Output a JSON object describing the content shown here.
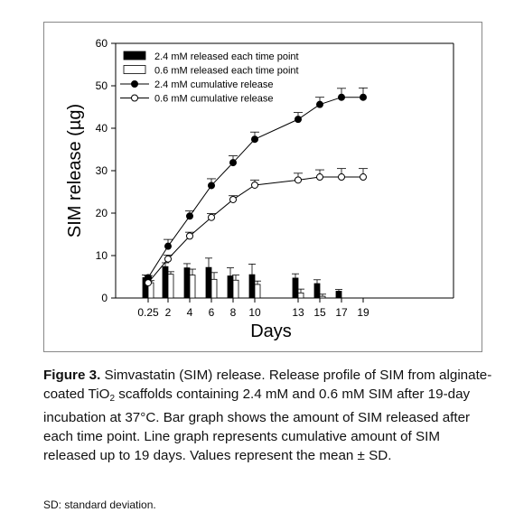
{
  "chart_data": {
    "type": "bar+line",
    "xlabel": "Days",
    "ylabel": "SIM release (µg)",
    "ylim": [
      0,
      60
    ],
    "yticks": [
      "0",
      "10",
      "20",
      "30",
      "40",
      "50",
      "60"
    ],
    "categories": [
      "0.25",
      "2",
      "4",
      "6",
      "8",
      "10",
      "13",
      "15",
      "17",
      "19"
    ],
    "bar_series": [
      {
        "name": "2.4 mM released each time point",
        "fill": "#000000",
        "values": [
          4.8,
          7.4,
          7.1,
          7.2,
          5.2,
          5.5,
          4.7,
          3.4,
          1.6,
          0
        ],
        "errors": [
          0.6,
          0.9,
          1.0,
          2.2,
          1.9,
          2.5,
          1.0,
          0.9,
          0.4,
          0
        ]
      },
      {
        "name": "0.6 mM released each time point",
        "fill": "#ffffff",
        "values": [
          3.6,
          5.6,
          5.4,
          4.4,
          4.2,
          3.2,
          1.2,
          0.4,
          0,
          0
        ],
        "errors": [
          0.5,
          0.6,
          1.4,
          1.6,
          1.2,
          0.8,
          0.9,
          0.5,
          0,
          0
        ]
      }
    ],
    "line_series": [
      {
        "name": "2.4 mM cumulative release",
        "marker": "filled",
        "values": [
          4.8,
          12.2,
          19.3,
          26.5,
          31.9,
          37.4,
          42.1,
          45.6,
          47.3,
          47.3
        ],
        "errors": [
          0.5,
          1.6,
          1.2,
          1.6,
          1.6,
          1.7,
          1.6,
          1.7,
          2.1,
          2.2
        ]
      },
      {
        "name": "0.6 mM cumulative release",
        "marker": "open",
        "values": [
          3.6,
          9.2,
          14.6,
          19.0,
          23.2,
          26.6,
          27.8,
          28.5,
          28.5,
          28.5
        ],
        "errors": [
          0.4,
          0.9,
          0.9,
          0.9,
          0.9,
          1.2,
          1.6,
          1.7,
          2.0,
          2.0
        ]
      }
    ],
    "legend_position": "top-left"
  },
  "caption": {
    "label": "Figure 3.",
    "text_1": "  Simvastatin (SIM) release. Release profile of SIM from alginate-coated TiO",
    "subscript": "2",
    "text_2": " scaffolds containing 2.4 mM and 0.6 mM SIM after 19-day incubation at 37°C. Bar graph shows the amount of SIM released after each time point. Line graph represents cumulative amount of SIM released up to 19 days. Values represent the mean ± SD."
  },
  "footnote": "SD: standard deviation."
}
